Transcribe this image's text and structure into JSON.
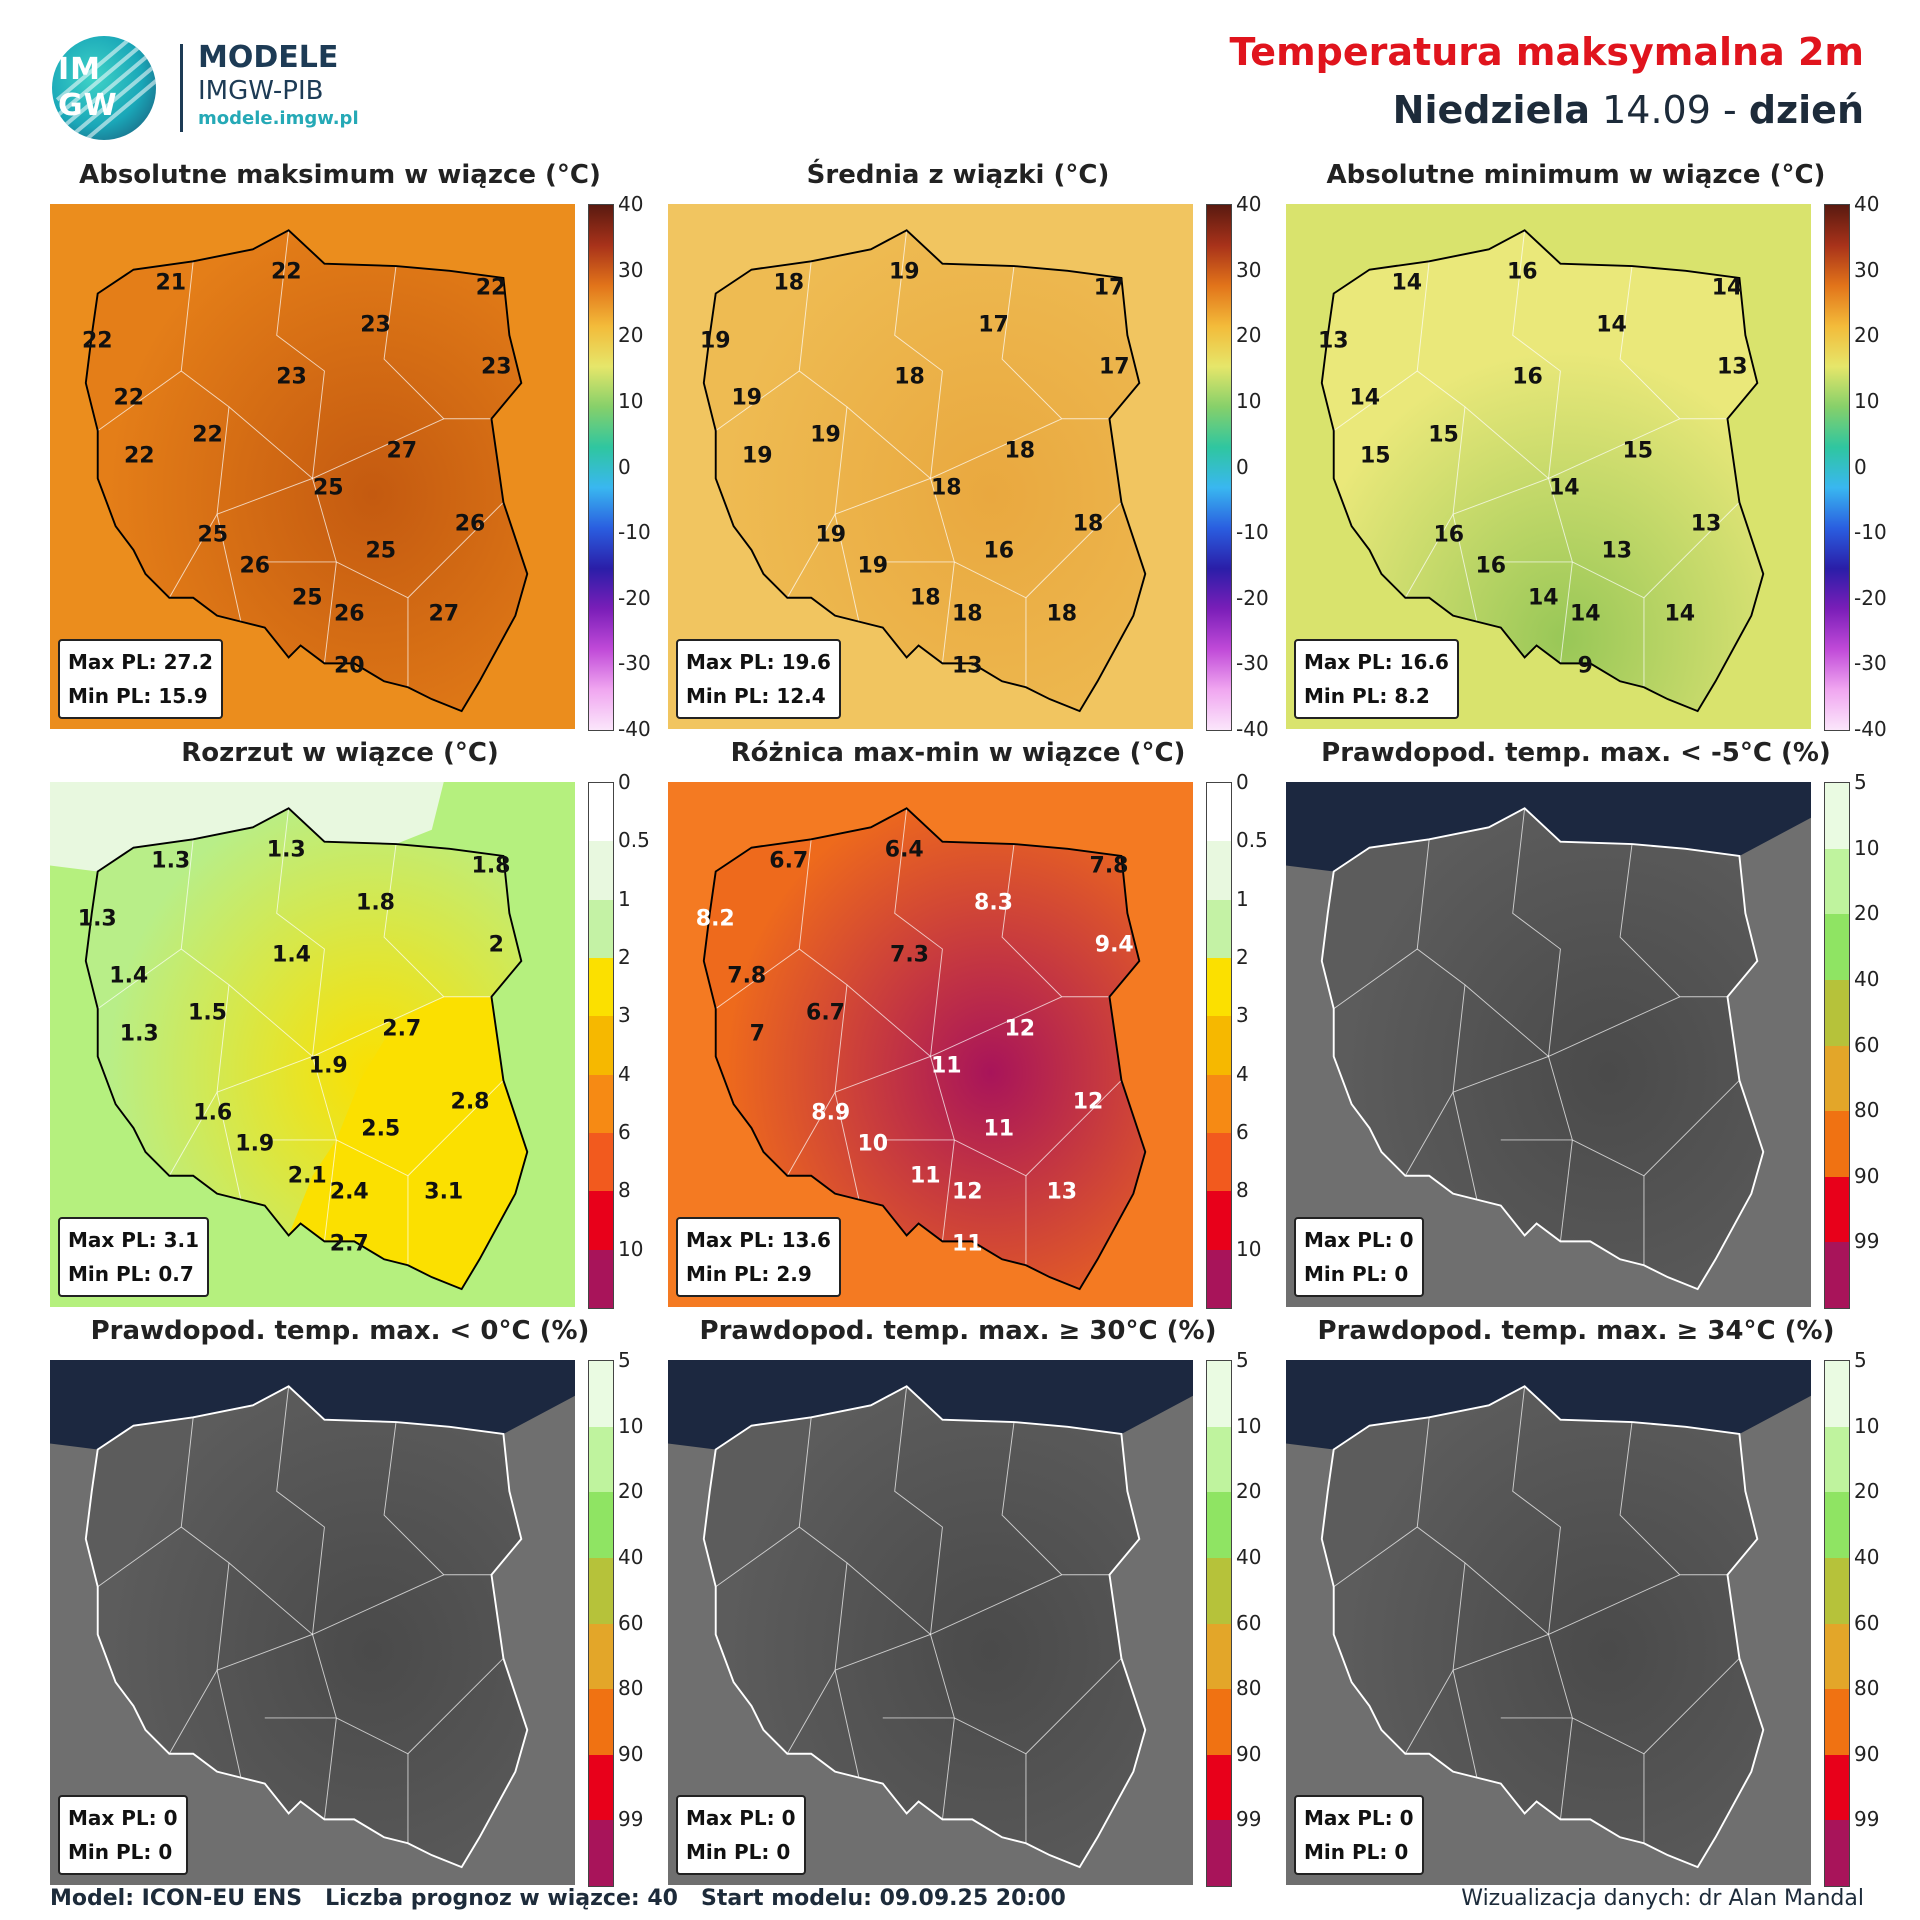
{
  "header": {
    "logo_text_top": "IM",
    "logo_text_bottom": "GW",
    "brand_name": "MODELE",
    "brand_org": "IMGW-PIB",
    "brand_url": "modele.imgw.pl",
    "title": "Temperatura maksymalna 2m",
    "subtitle_day": "Niedziela",
    "subtitle_date": "14.09",
    "subtitle_sep": "-",
    "subtitle_period": "dzień"
  },
  "panels": [
    {
      "title": "Absolutne maksimum w wiązce (°C)",
      "scale": "temp",
      "colors": {
        "bg": "#eb8d1d",
        "land": "#e47e18",
        "hot": "#c45a10"
      },
      "stat_max": "Max PL: 27.2",
      "stat_min": "Min PL: 15.9",
      "values": [
        {
          "t": "21",
          "x": 0.23,
          "y": 0.15
        },
        {
          "t": "22",
          "x": 0.45,
          "y": 0.13
        },
        {
          "t": "22",
          "x": 0.84,
          "y": 0.16
        },
        {
          "t": "22",
          "x": 0.09,
          "y": 0.26
        },
        {
          "t": "23",
          "x": 0.62,
          "y": 0.23
        },
        {
          "t": "23",
          "x": 0.85,
          "y": 0.31
        },
        {
          "t": "23",
          "x": 0.46,
          "y": 0.33
        },
        {
          "t": "22",
          "x": 0.15,
          "y": 0.37
        },
        {
          "t": "22",
          "x": 0.3,
          "y": 0.44
        },
        {
          "t": "27",
          "x": 0.67,
          "y": 0.47
        },
        {
          "t": "22",
          "x": 0.17,
          "y": 0.48
        },
        {
          "t": "25",
          "x": 0.53,
          "y": 0.54
        },
        {
          "t": "26",
          "x": 0.8,
          "y": 0.61
        },
        {
          "t": "25",
          "x": 0.31,
          "y": 0.63
        },
        {
          "t": "25",
          "x": 0.63,
          "y": 0.66
        },
        {
          "t": "26",
          "x": 0.39,
          "y": 0.69
        },
        {
          "t": "25",
          "x": 0.49,
          "y": 0.75
        },
        {
          "t": "26",
          "x": 0.57,
          "y": 0.78
        },
        {
          "t": "27",
          "x": 0.75,
          "y": 0.78
        },
        {
          "t": "20",
          "x": 0.57,
          "y": 0.88
        }
      ]
    },
    {
      "title": "Średnia z wiązki (°C)",
      "scale": "temp",
      "colors": {
        "bg": "#f1c560",
        "land": "#eebb52",
        "hot": "#e9a83f"
      },
      "stat_max": "Max PL: 19.6",
      "stat_min": "Min PL: 12.4",
      "values": [
        {
          "t": "18",
          "x": 0.23,
          "y": 0.15
        },
        {
          "t": "19",
          "x": 0.45,
          "y": 0.13
        },
        {
          "t": "17",
          "x": 0.84,
          "y": 0.16
        },
        {
          "t": "19",
          "x": 0.09,
          "y": 0.26
        },
        {
          "t": "17",
          "x": 0.62,
          "y": 0.23
        },
        {
          "t": "17",
          "x": 0.85,
          "y": 0.31
        },
        {
          "t": "18",
          "x": 0.46,
          "y": 0.33
        },
        {
          "t": "19",
          "x": 0.15,
          "y": 0.37
        },
        {
          "t": "19",
          "x": 0.3,
          "y": 0.44
        },
        {
          "t": "18",
          "x": 0.67,
          "y": 0.47
        },
        {
          "t": "19",
          "x": 0.17,
          "y": 0.48
        },
        {
          "t": "18",
          "x": 0.53,
          "y": 0.54
        },
        {
          "t": "18",
          "x": 0.8,
          "y": 0.61
        },
        {
          "t": "19",
          "x": 0.31,
          "y": 0.63
        },
        {
          "t": "16",
          "x": 0.63,
          "y": 0.66
        },
        {
          "t": "19",
          "x": 0.39,
          "y": 0.69
        },
        {
          "t": "18",
          "x": 0.49,
          "y": 0.75
        },
        {
          "t": "18",
          "x": 0.57,
          "y": 0.78
        },
        {
          "t": "18",
          "x": 0.75,
          "y": 0.78
        },
        {
          "t": "13",
          "x": 0.57,
          "y": 0.88
        }
      ]
    },
    {
      "title": "Absolutne minimum w wiązce (°C)",
      "scale": "temp",
      "colors": {
        "bg": "#d9e36d",
        "land": "#eae87a",
        "hot": "#98c757"
      },
      "stat_max": "Max PL: 16.6",
      "stat_min": "Min PL: 8.2",
      "values": [
        {
          "t": "14",
          "x": 0.23,
          "y": 0.15
        },
        {
          "t": "16",
          "x": 0.45,
          "y": 0.13
        },
        {
          "t": "14",
          "x": 0.84,
          "y": 0.16
        },
        {
          "t": "13",
          "x": 0.09,
          "y": 0.26
        },
        {
          "t": "14",
          "x": 0.62,
          "y": 0.23
        },
        {
          "t": "13",
          "x": 0.85,
          "y": 0.31
        },
        {
          "t": "16",
          "x": 0.46,
          "y": 0.33
        },
        {
          "t": "14",
          "x": 0.15,
          "y": 0.37
        },
        {
          "t": "15",
          "x": 0.3,
          "y": 0.44
        },
        {
          "t": "15",
          "x": 0.67,
          "y": 0.47
        },
        {
          "t": "15",
          "x": 0.17,
          "y": 0.48
        },
        {
          "t": "14",
          "x": 0.53,
          "y": 0.54
        },
        {
          "t": "13",
          "x": 0.8,
          "y": 0.61
        },
        {
          "t": "16",
          "x": 0.31,
          "y": 0.63
        },
        {
          "t": "13",
          "x": 0.63,
          "y": 0.66
        },
        {
          "t": "16",
          "x": 0.39,
          "y": 0.69
        },
        {
          "t": "14",
          "x": 0.49,
          "y": 0.75
        },
        {
          "t": "14",
          "x": 0.57,
          "y": 0.78
        },
        {
          "t": "14",
          "x": 0.75,
          "y": 0.78
        },
        {
          "t": "9",
          "x": 0.57,
          "y": 0.88
        }
      ]
    },
    {
      "title": "Rozrzut w wiązce (°C)",
      "scale": "spread",
      "colors": {
        "bg": "#b5f07e",
        "land": "#b8ee88",
        "hot": "#fbe000"
      },
      "stat_max": "Max PL: 3.1",
      "stat_min": "Min PL: 0.7",
      "values": [
        {
          "t": "1.3",
          "x": 0.23,
          "y": 0.15
        },
        {
          "t": "1.3",
          "x": 0.45,
          "y": 0.13
        },
        {
          "t": "1.8",
          "x": 0.84,
          "y": 0.16
        },
        {
          "t": "1.3",
          "x": 0.09,
          "y": 0.26
        },
        {
          "t": "1.8",
          "x": 0.62,
          "y": 0.23
        },
        {
          "t": "2",
          "x": 0.85,
          "y": 0.31
        },
        {
          "t": "1.4",
          "x": 0.46,
          "y": 0.33
        },
        {
          "t": "1.4",
          "x": 0.15,
          "y": 0.37
        },
        {
          "t": "1.5",
          "x": 0.3,
          "y": 0.44
        },
        {
          "t": "2.7",
          "x": 0.67,
          "y": 0.47
        },
        {
          "t": "1.3",
          "x": 0.17,
          "y": 0.48
        },
        {
          "t": "1.9",
          "x": 0.53,
          "y": 0.54
        },
        {
          "t": "2.8",
          "x": 0.8,
          "y": 0.61
        },
        {
          "t": "1.6",
          "x": 0.31,
          "y": 0.63
        },
        {
          "t": "2.5",
          "x": 0.63,
          "y": 0.66
        },
        {
          "t": "1.9",
          "x": 0.39,
          "y": 0.69
        },
        {
          "t": "2.1",
          "x": 0.49,
          "y": 0.75
        },
        {
          "t": "2.4",
          "x": 0.57,
          "y": 0.78
        },
        {
          "t": "3.1",
          "x": 0.75,
          "y": 0.78
        },
        {
          "t": "2.7",
          "x": 0.57,
          "y": 0.88
        }
      ]
    },
    {
      "title": "Różnica max-min w wiązce (°C)",
      "scale": "spread",
      "colors": {
        "bg": "#f47a22",
        "land": "#ee6a1c",
        "hot": "#a8145a"
      },
      "stat_max": "Max PL: 13.6",
      "stat_min": "Min PL: 2.9",
      "values": [
        {
          "t": "6.7",
          "x": 0.23,
          "y": 0.15
        },
        {
          "t": "6.4",
          "x": 0.45,
          "y": 0.13
        },
        {
          "t": "7.8",
          "x": 0.84,
          "y": 0.16
        },
        {
          "t": "8.2",
          "x": 0.09,
          "y": 0.26,
          "w": true
        },
        {
          "t": "8.3",
          "x": 0.62,
          "y": 0.23,
          "w": true
        },
        {
          "t": "9.4",
          "x": 0.85,
          "y": 0.31,
          "w": true
        },
        {
          "t": "7.3",
          "x": 0.46,
          "y": 0.33
        },
        {
          "t": "7.8",
          "x": 0.15,
          "y": 0.37
        },
        {
          "t": "6.7",
          "x": 0.3,
          "y": 0.44
        },
        {
          "t": "12",
          "x": 0.67,
          "y": 0.47,
          "w": true
        },
        {
          "t": "7",
          "x": 0.17,
          "y": 0.48
        },
        {
          "t": "11",
          "x": 0.53,
          "y": 0.54,
          "w": true
        },
        {
          "t": "12",
          "x": 0.8,
          "y": 0.61,
          "w": true
        },
        {
          "t": "8.9",
          "x": 0.31,
          "y": 0.63,
          "w": true
        },
        {
          "t": "11",
          "x": 0.63,
          "y": 0.66,
          "w": true
        },
        {
          "t": "10",
          "x": 0.39,
          "y": 0.69,
          "w": true
        },
        {
          "t": "11",
          "x": 0.49,
          "y": 0.75,
          "w": true
        },
        {
          "t": "12",
          "x": 0.57,
          "y": 0.78,
          "w": true
        },
        {
          "t": "13",
          "x": 0.75,
          "y": 0.78,
          "w": true
        },
        {
          "t": "11",
          "x": 0.57,
          "y": 0.88,
          "w": true
        }
      ]
    },
    {
      "title": "Prawdopod. temp. max. < -5°C (%)",
      "scale": "prob",
      "colors": {
        "bg": "#6f6f6f",
        "land": "#5c5c5c",
        "hot": "#4a4a4a"
      },
      "stat_max": "Max PL: 0",
      "stat_min": "Min PL: 0",
      "values": []
    },
    {
      "title": "Prawdopod. temp. max. < 0°C (%)",
      "scale": "prob",
      "colors": {
        "bg": "#6f6f6f",
        "land": "#5c5c5c",
        "hot": "#4a4a4a"
      },
      "stat_max": "Max PL: 0",
      "stat_min": "Min PL: 0",
      "values": []
    },
    {
      "title": "Prawdopod. temp. max. ≥ 30°C (%)",
      "scale": "prob",
      "colors": {
        "bg": "#6f6f6f",
        "land": "#5c5c5c",
        "hot": "#4a4a4a"
      },
      "stat_max": "Max PL: 0",
      "stat_min": "Min PL: 0",
      "values": []
    },
    {
      "title": "Prawdopod. temp. max. ≥ 34°C (%)",
      "scale": "prob",
      "colors": {
        "bg": "#6f6f6f",
        "land": "#5c5c5c",
        "hot": "#4a4a4a"
      },
      "stat_max": "Max PL: 0",
      "stat_min": "Min PL: 0",
      "values": []
    }
  ],
  "colorbars": {
    "temp": {
      "labels": [
        "40",
        "30",
        "20",
        "10",
        "0",
        "-10",
        "-20",
        "-30",
        "-40"
      ],
      "stops": [
        "#5a1a10",
        "#a8321a",
        "#e2741a",
        "#f3bb3a",
        "#e6e66a",
        "#86d06a",
        "#2fc6a0",
        "#39b7f0",
        "#2a5ee0",
        "#2a1ea8",
        "#7a1eb8",
        "#c04ad8",
        "#f0a6f0",
        "#fbe6fb"
      ]
    },
    "spread": {
      "labels": [
        "0",
        "0.5",
        "1",
        "2",
        "3",
        "4",
        "6",
        "8",
        "10"
      ],
      "colors": [
        "#ffffff",
        "#e8f8df",
        "#c4f2a5",
        "#fbe000",
        "#f6b800",
        "#f68a14",
        "#f25a1e",
        "#e8001a",
        "#a8145a"
      ]
    },
    "prob": {
      "labels": [
        "5",
        "10",
        "20",
        "40",
        "60",
        "80",
        "90",
        "99"
      ],
      "colors": [
        "#eafbe2",
        "#bff39e",
        "#8fe463",
        "#b6c23a",
        "#e3a629",
        "#f07212",
        "#e8001a",
        "#a8145a"
      ]
    }
  },
  "colors": {
    "sea_dark": "#1c2840",
    "border": "#000000",
    "region_border": "#ffffff"
  },
  "footer": {
    "model": "Model: ICON-EU ENS",
    "members": "Liczba prognoz w wiązce: 40",
    "start": "Start modelu: 09.09.25  20:00",
    "credit": "Wizualizacja danych: dr Alan Mandal"
  }
}
